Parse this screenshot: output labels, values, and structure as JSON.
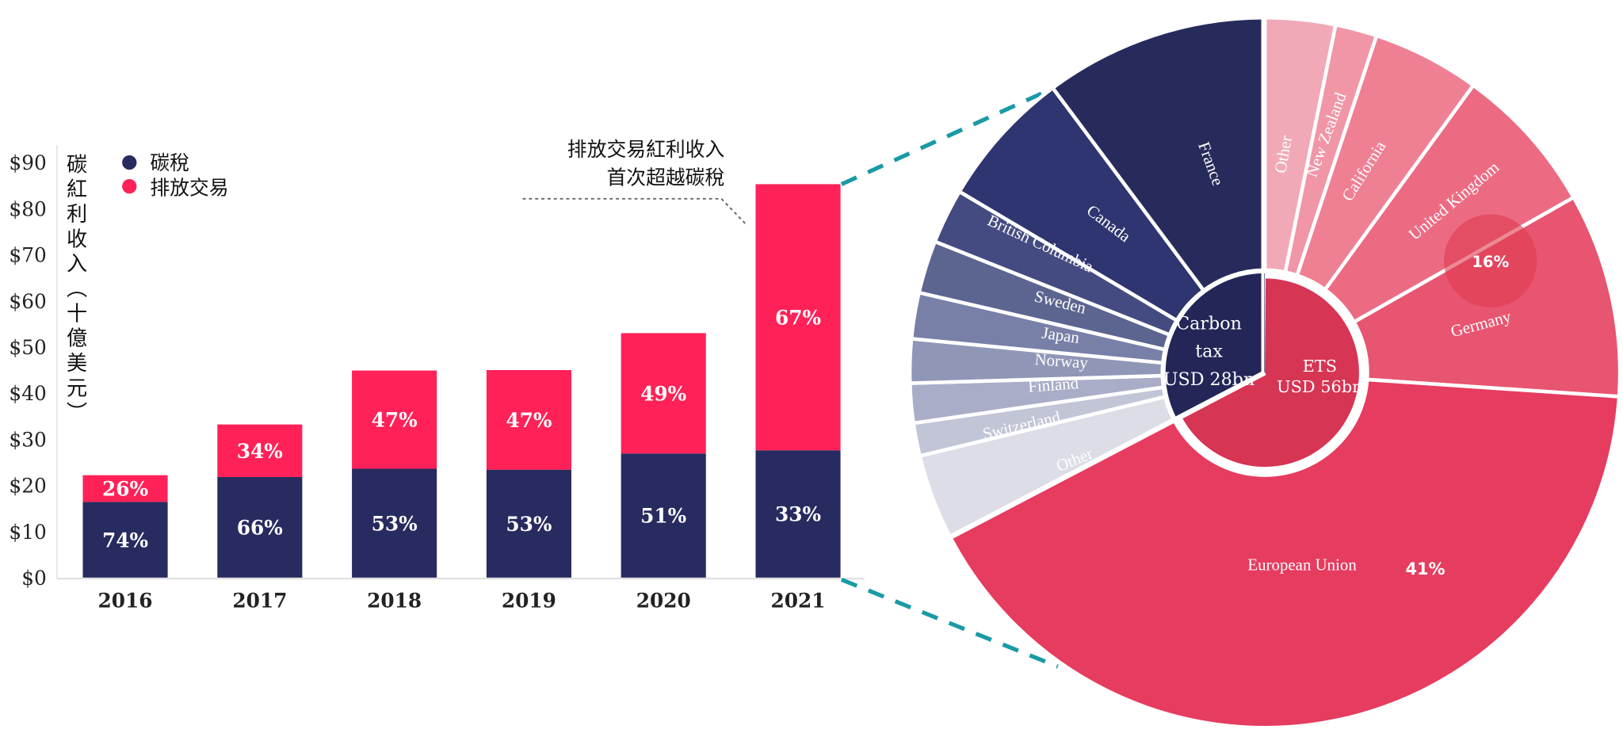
{
  "chart_data": [
    {
      "type": "bar",
      "stacked": true,
      "title": "",
      "ylabel": "碳紅利收入（十億美元）",
      "xlabel": "",
      "ylim": [
        0,
        90
      ],
      "yticks": [
        "$0",
        "$10",
        "$20",
        "$30",
        "$40",
        "$50",
        "$60",
        "$70",
        "$80",
        "$90"
      ],
      "ytick_values": [
        0,
        10,
        20,
        30,
        40,
        50,
        60,
        70,
        80,
        90
      ],
      "categories": [
        "2016",
        "2017",
        "2018",
        "2019",
        "2020",
        "2021"
      ],
      "legend": {
        "placement": "top-left",
        "entries": [
          "碳稅",
          "排放交易"
        ]
      },
      "series": [
        {
          "name": "碳稅",
          "color": "#272b5f",
          "values": [
            16.4,
            21.8,
            23.6,
            23.4,
            26.9,
            27.6
          ],
          "labels": [
            "74%",
            "66%",
            "53%",
            "53%",
            "51%",
            "33%"
          ]
        },
        {
          "name": "排放交易",
          "color": "#ff2157",
          "values": [
            5.8,
            11.4,
            21.3,
            21.6,
            26.1,
            57.7
          ],
          "labels": [
            "26%",
            "34%",
            "47%",
            "47%",
            "49%",
            "67%"
          ]
        }
      ],
      "annotation": {
        "lines": [
          "排放交易紅利收入",
          "首次超越碳稅"
        ],
        "target": "2021"
      }
    },
    {
      "type": "pie",
      "subtype": "sunburst",
      "inner": [
        {
          "lines": [
            "Carbon",
            "tax",
            "USD 28bn"
          ],
          "value": 28,
          "color": "#232657"
        },
        {
          "lines": [
            "ETS",
            "USD 56bn"
          ],
          "value": 56,
          "color": "#d63553"
        }
      ],
      "ets_slices": [
        {
          "name": "Other",
          "share": 3.2,
          "color": "#f2a9b7"
        },
        {
          "name": "New Zealand",
          "share": 1.9,
          "color": "#f096a6"
        },
        {
          "name": "California",
          "share": 4.9,
          "color": "#ef8094"
        },
        {
          "name": "United Kingdom",
          "share": 6.8,
          "color": "#ec6b83"
        },
        {
          "name": "Germany",
          "share": 9.3,
          "color": "#e85570"
        },
        {
          "name": "European Union",
          "share": 41.3,
          "color": "#e63c5f",
          "label": "41%"
        }
      ],
      "carbon_tax_slices": [
        {
          "name": "France",
          "share": 10.2,
          "color": "#272b5c"
        },
        {
          "name": "Canada",
          "share": 6.3,
          "color": "#2e3570"
        },
        {
          "name": "British Columbia",
          "share": 2.5,
          "color": "#444b80"
        },
        {
          "name": "Sweden",
          "share": 2.4,
          "color": "#5c6590"
        },
        {
          "name": "Japan",
          "share": 2.1,
          "color": "#7880a8"
        },
        {
          "name": "Norway",
          "share": 2.0,
          "color": "#9096b6"
        },
        {
          "name": "Finland",
          "share": 1.8,
          "color": "#a9adc8"
        },
        {
          "name": "Switzerland",
          "share": 1.5,
          "color": "#c2c5d6"
        },
        {
          "name": "Other",
          "share": 3.9,
          "color": "#dcdde6"
        }
      ],
      "highlight_label": "16%"
    }
  ],
  "colors": {
    "connector": "#1a9aa5",
    "highlight": "#e03a50"
  }
}
